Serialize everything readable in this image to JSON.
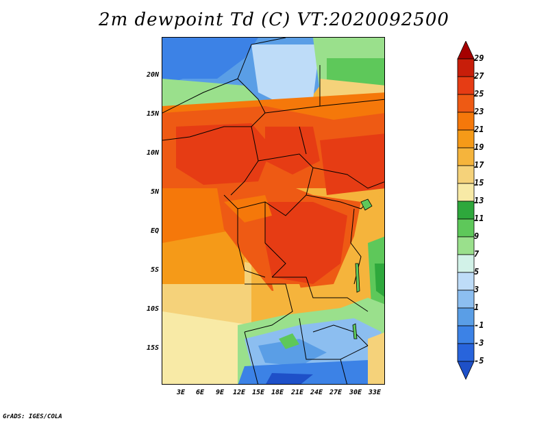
{
  "title": "2m dewpoint Td (C) VT:2020092500",
  "credit": "GrADS: IGES/COLA",
  "lat_labels": [
    "20N",
    "15N",
    "10N",
    "5N",
    "EQ",
    "5S",
    "10S",
    "15S"
  ],
  "lon_labels": [
    "3E",
    "6E",
    "9E",
    "12E",
    "15E",
    "18E",
    "21E",
    "24E",
    "27E",
    "30E",
    "33E"
  ],
  "colorbar": {
    "labels": [
      "29",
      "27",
      "25",
      "23",
      "21",
      "19",
      "17",
      "15",
      "13",
      "11",
      "9",
      "7",
      "5",
      "3",
      "1",
      "-1",
      "-3",
      "-5"
    ],
    "colors": [
      "#a50000",
      "#c81e0a",
      "#e63c14",
      "#ee5a14",
      "#f5780a",
      "#f59a18",
      "#f5b43c",
      "#f5d27a",
      "#f8eaa6",
      "#2ea83c",
      "#5ec85a",
      "#9ae08c",
      "#d2f2e8",
      "#bedcf8",
      "#8cbef0",
      "#5a9ee6",
      "#3c82e6",
      "#2864dc",
      "#1e50c8"
    ]
  }
}
